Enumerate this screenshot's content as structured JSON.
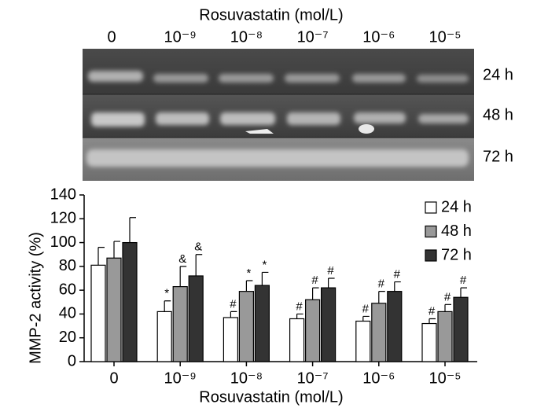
{
  "chart_data": {
    "type": "bar",
    "title": "Rosuvastatin (mol/L)",
    "xlabel": "Rosuvastatin (mol/L)",
    "ylabel": "MMP-2 activity (%)",
    "categories": [
      "0",
      "10⁻⁹",
      "10⁻⁸",
      "10⁻⁷",
      "10⁻⁶",
      "10⁻⁵"
    ],
    "series": [
      {
        "name": "24 h",
        "color": "#ffffff",
        "values": [
          81,
          42,
          37,
          36,
          34,
          32
        ],
        "errors": [
          15,
          9,
          5,
          4,
          4,
          4
        ],
        "annotations": [
          null,
          "*",
          "#",
          "#",
          "#",
          "#"
        ]
      },
      {
        "name": "48 h",
        "color": "#999999",
        "values": [
          87,
          63,
          59,
          52,
          49,
          42
        ],
        "errors": [
          14,
          17,
          9,
          10,
          10,
          6
        ],
        "annotations": [
          null,
          "&",
          "*",
          "#",
          "#",
          "#"
        ]
      },
      {
        "name": "72 h",
        "color": "#333333",
        "values": [
          100,
          72,
          64,
          62,
          59,
          54
        ],
        "errors": [
          21,
          18,
          11,
          8,
          8,
          8
        ],
        "annotations": [
          null,
          "&",
          "*",
          "#",
          "#",
          "#"
        ]
      }
    ],
    "ylim": [
      0,
      140
    ],
    "yticks": [
      0,
      20,
      40,
      60,
      80,
      100,
      120,
      140
    ],
    "legend": "upper right"
  }
}
